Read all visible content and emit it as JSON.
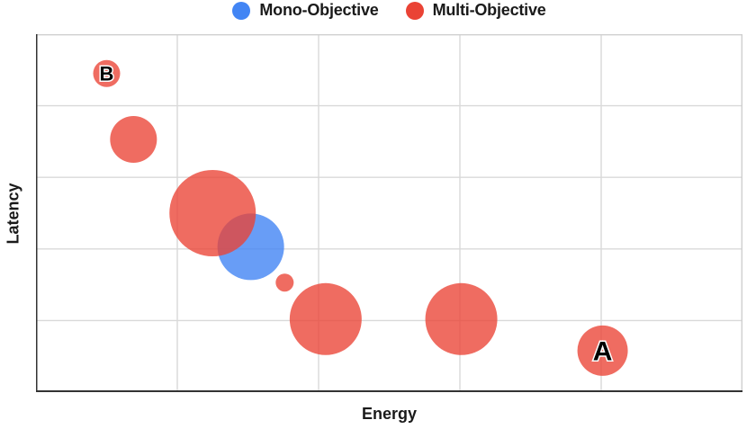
{
  "legend": {
    "items": [
      {
        "label": "Mono-Objective",
        "color": "#4285F4"
      },
      {
        "label": "Multi-Objective",
        "color": "#EA4335"
      }
    ]
  },
  "axes": {
    "x_label": "Energy",
    "y_label": "Latency"
  },
  "colors": {
    "mono": "#4285F4",
    "multi": "#EA4335",
    "grid": "#D9D9D9",
    "frame_light": "#CFCFCF",
    "axis_dark": "#333333",
    "text": "#1A1A1A",
    "point_label_fill": "#000000",
    "point_label_stroke": "#FFFFFF"
  },
  "chart_data": {
    "type": "scatter",
    "subtype": "bubble",
    "title": "",
    "xlabel": "Energy",
    "ylabel": "Latency",
    "grid": true,
    "legend_position": "top",
    "axis_tick_labels": "none",
    "x_range_grid_units": [
      0,
      5
    ],
    "y_range_grid_units": [
      0,
      5
    ],
    "series": [
      {
        "name": "Mono-Objective",
        "color": "#4285F4",
        "fill_opacity": 0.8,
        "points": [
          {
            "x": 1.52,
            "y": 2.03,
            "r": 37,
            "label": ""
          }
        ]
      },
      {
        "name": "Multi-Objective",
        "color": "#EA4335",
        "fill_opacity": 0.78,
        "points": [
          {
            "x": 0.5,
            "y": 4.45,
            "r": 15,
            "label": "B"
          },
          {
            "x": 0.69,
            "y": 3.53,
            "r": 26,
            "label": ""
          },
          {
            "x": 1.25,
            "y": 2.5,
            "r": 48,
            "label": ""
          },
          {
            "x": 1.76,
            "y": 1.53,
            "r": 10,
            "label": ""
          },
          {
            "x": 2.05,
            "y": 1.02,
            "r": 40,
            "label": ""
          },
          {
            "x": 3.01,
            "y": 1.02,
            "r": 40,
            "label": ""
          },
          {
            "x": 4.01,
            "y": 0.58,
            "r": 28,
            "label": "A"
          }
        ]
      }
    ]
  }
}
